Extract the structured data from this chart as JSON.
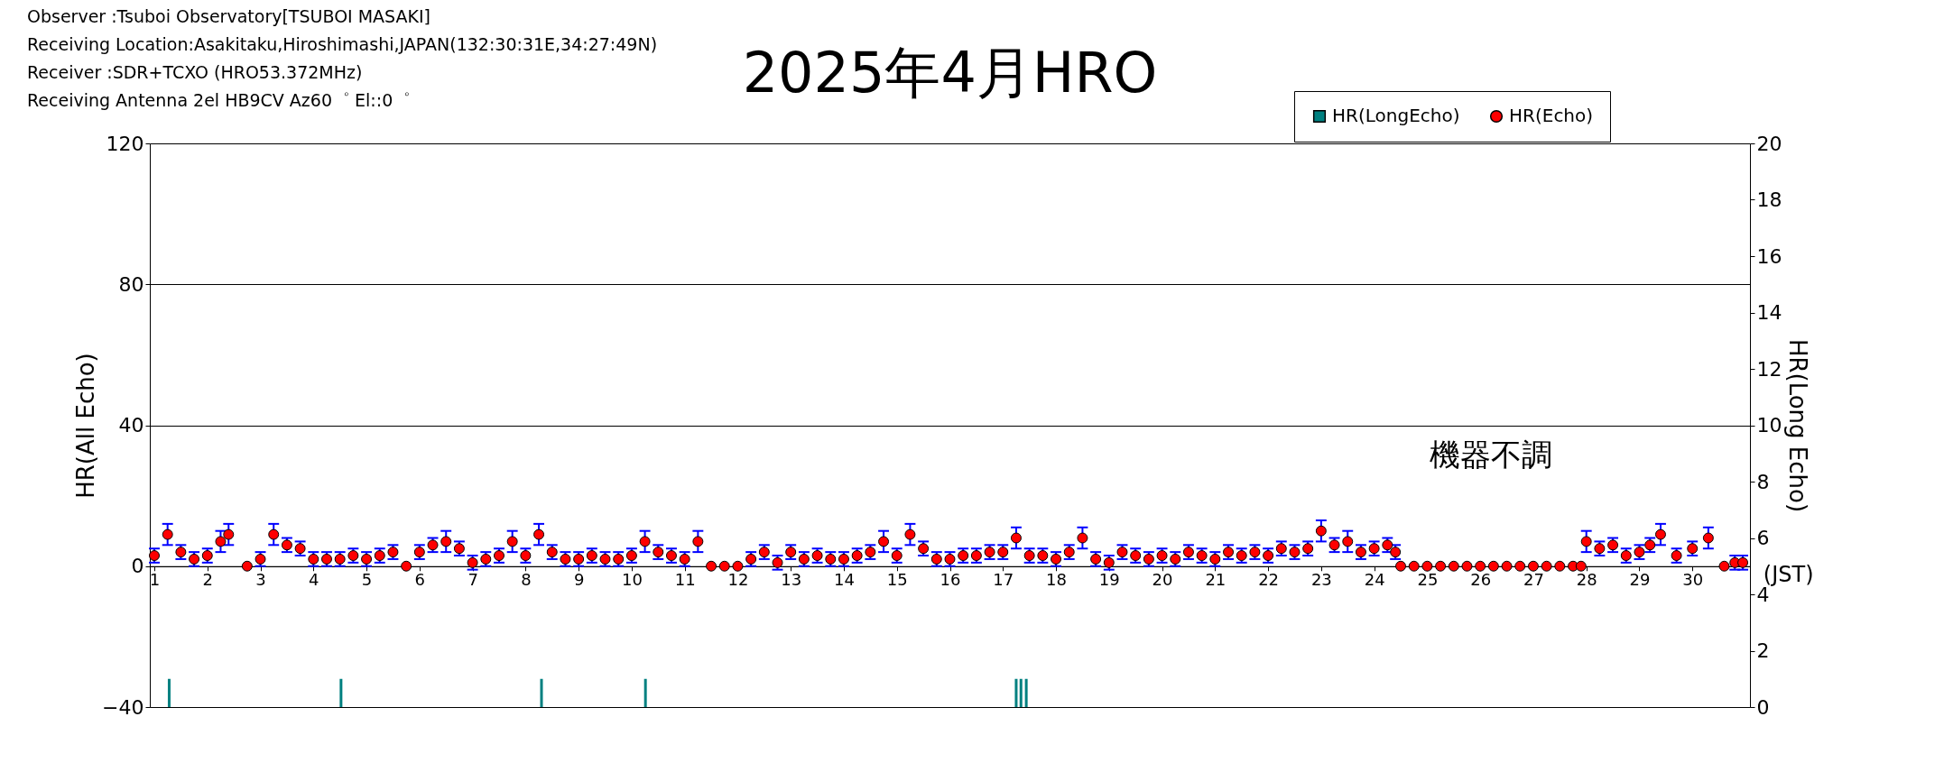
{
  "chart_data": {
    "type": "scatter",
    "title": "2025年4月HRO",
    "annotations": [
      "Observer :Tsuboi Observatory[TSUBOI MASAKI]",
      "Receiving Location:Asakitaku,Hiroshimashi,JAPAN(132:30:31E,34:27:49N)",
      "Receiver :SDR+TCXO (HRO53.372MHz)",
      "Receiving Antenna 2el HB9CV Az60゜ El::0゜",
      "機器不調"
    ],
    "xlabel": "(JST)",
    "ylabel": "HR(All Echo)",
    "y2label": "HR(Long Echo)",
    "xlim": [
      1,
      31
    ],
    "xticks": [
      1,
      2,
      3,
      4,
      5,
      6,
      7,
      8,
      9,
      10,
      11,
      12,
      13,
      14,
      15,
      16,
      17,
      18,
      19,
      20,
      21,
      22,
      23,
      24,
      25,
      26,
      27,
      28,
      29,
      30
    ],
    "ylim": [
      -40,
      120
    ],
    "yticks": [
      -40,
      0,
      40,
      80,
      120
    ],
    "y2lim": [
      0,
      20
    ],
    "y2ticks": [
      0,
      2,
      4,
      6,
      8,
      10,
      12,
      14,
      16,
      18,
      20
    ],
    "grid": "y",
    "legend": "top right",
    "marker": "circle",
    "series": [
      {
        "name": "HR(LongEcho)",
        "type": "bar",
        "axis": "y2",
        "color": "#008080",
        "x": [
          1.28,
          4.52,
          8.3,
          10.26,
          17.25,
          17.34,
          17.44
        ],
        "values": [
          1,
          1,
          1,
          1,
          1,
          1,
          1
        ]
      },
      {
        "name": "HR(Echo)",
        "color": "#ff0000",
        "x": [
          1,
          1.25,
          1.5,
          1.75,
          2,
          2.25,
          2.4,
          2.75,
          3,
          3.25,
          3.5,
          3.75,
          4,
          4.25,
          4.5,
          4.75,
          5,
          5.25,
          5.5,
          5.75,
          6,
          6.25,
          6.5,
          6.75,
          7,
          7.25,
          7.5,
          7.75,
          8,
          8.25,
          8.5,
          8.75,
          9,
          9.25,
          9.5,
          9.75,
          10,
          10.25,
          10.5,
          10.75,
          11,
          11.25,
          11.5,
          11.75,
          12,
          12.25,
          12.5,
          12.75,
          13,
          13.25,
          13.5,
          13.75,
          14,
          14.25,
          14.5,
          14.75,
          15,
          15.25,
          15.5,
          15.75,
          16,
          16.25,
          16.5,
          16.75,
          17,
          17.25,
          17.5,
          17.75,
          18,
          18.25,
          18.5,
          18.75,
          19,
          19.25,
          19.5,
          19.75,
          20,
          20.25,
          20.5,
          20.75,
          21,
          21.25,
          21.5,
          21.75,
          22,
          22.25,
          22.5,
          22.75,
          23,
          23.25,
          23.5,
          23.75,
          24,
          24.25,
          24.4,
          24.5,
          24.75,
          25,
          25.25,
          25.5,
          25.75,
          26,
          26.25,
          26.5,
          26.75,
          27,
          27.25,
          27.5,
          27.75,
          27.9,
          28,
          28.25,
          28.5,
          28.75,
          29,
          29.2,
          29.4,
          29.7,
          30,
          30.3,
          30.6,
          30.8,
          30.95
        ],
        "values": [
          3,
          9,
          4,
          2,
          3,
          7,
          9,
          0,
          2,
          9,
          6,
          5,
          2,
          2,
          2,
          3,
          2,
          3,
          4,
          0,
          4,
          6,
          7,
          5,
          1,
          2,
          3,
          7,
          3,
          9,
          4,
          2,
          2,
          3,
          2,
          2,
          3,
          7,
          4,
          3,
          2,
          7,
          0,
          0,
          0,
          2,
          4,
          1,
          4,
          2,
          3,
          2,
          2,
          3,
          4,
          7,
          3,
          9,
          5,
          2,
          2,
          3,
          3,
          4,
          4,
          8,
          3,
          3,
          2,
          4,
          8,
          2,
          1,
          4,
          3,
          2,
          3,
          2,
          4,
          3,
          2,
          4,
          3,
          4,
          3,
          5,
          4,
          5,
          10,
          6,
          7,
          4,
          5,
          6,
          4,
          0,
          0,
          0,
          0,
          0,
          0,
          0,
          0,
          0,
          0,
          0,
          0,
          0,
          0,
          0,
          7,
          5,
          6,
          3,
          4,
          6,
          9,
          3,
          5,
          8,
          0,
          1,
          1
        ],
        "errors": [
          2,
          3,
          2,
          2,
          2,
          3,
          3,
          null,
          2,
          3,
          2,
          2,
          2,
          2,
          2,
          2,
          2,
          2,
          2,
          null,
          2,
          2,
          3,
          2,
          2,
          2,
          2,
          3,
          2,
          3,
          2,
          2,
          2,
          2,
          2,
          2,
          2,
          3,
          2,
          2,
          2,
          3,
          null,
          null,
          null,
          2,
          2,
          2,
          2,
          2,
          2,
          2,
          2,
          2,
          2,
          3,
          2,
          3,
          2,
          2,
          2,
          2,
          2,
          2,
          2,
          3,
          2,
          2,
          2,
          2,
          3,
          2,
          2,
          2,
          2,
          2,
          2,
          2,
          2,
          2,
          2,
          2,
          2,
          2,
          2,
          2,
          2,
          2,
          3,
          2,
          3,
          2,
          2,
          2,
          2,
          null,
          null,
          null,
          null,
          null,
          null,
          null,
          null,
          null,
          null,
          null,
          null,
          null,
          null,
          null,
          3,
          2,
          2,
          2,
          2,
          2,
          3,
          2,
          2,
          3,
          null,
          2,
          2
        ]
      }
    ]
  }
}
